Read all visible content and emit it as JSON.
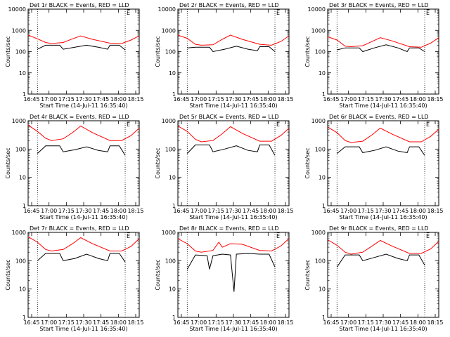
{
  "figure": {
    "xlabel": "Start Time (14-Jul-11 16:35:40)",
    "ylabel": "Counts/sec",
    "x_ticks": [
      "16:45",
      "17:00",
      "17:15",
      "17:30",
      "17:45",
      "18:00",
      "18:15"
    ],
    "y_ticks": [
      "1",
      "10",
      "100",
      "1000",
      "10000"
    ],
    "legend_glyph": "E̅",
    "colors": {
      "events": "#000000",
      "lld": "#ff0000",
      "axes": "#000000",
      "background": "#ffffff"
    }
  },
  "chart_data": [
    {
      "type": "line",
      "title": "Det 1r BLACK = Events, RED = LLD",
      "y_scale": "log",
      "x_range_minutes": [
        0,
        95
      ],
      "ylim": [
        1,
        10000
      ],
      "y_top_tick": "10000",
      "vlines": [
        8,
        83
      ],
      "series": [
        {
          "name": "BLACK = Events",
          "x": [
            8,
            15,
            27,
            30,
            40,
            50,
            60,
            68,
            70,
            78,
            83
          ],
          "y": [
            130,
            200,
            200,
            130,
            160,
            200,
            160,
            130,
            200,
            200,
            120
          ]
        },
        {
          "name": "RED = LLD",
          "x": [
            0,
            8,
            15,
            20,
            30,
            38,
            45,
            55,
            70,
            80,
            88,
            95
          ],
          "y": [
            600,
            400,
            270,
            240,
            270,
            400,
            550,
            380,
            250,
            240,
            350,
            550
          ]
        }
      ]
    },
    {
      "type": "line",
      "title": "Det 2r BLACK = Events, RED = LLD",
      "y_scale": "log",
      "x_range_minutes": [
        0,
        95
      ],
      "ylim": [
        1,
        10000
      ],
      "y_top_tick": "10000",
      "vlines": [
        8,
        83
      ],
      "series": [
        {
          "name": "BLACK = Events",
          "x": [
            8,
            15,
            27,
            30,
            40,
            50,
            60,
            68,
            70,
            78,
            83
          ],
          "y": [
            150,
            160,
            160,
            100,
            130,
            180,
            130,
            110,
            170,
            170,
            100
          ]
        },
        {
          "name": "RED = LLD",
          "x": [
            0,
            8,
            15,
            20,
            30,
            38,
            45,
            55,
            70,
            80,
            88,
            95
          ],
          "y": [
            600,
            420,
            220,
            200,
            210,
            380,
            600,
            380,
            220,
            200,
            300,
            550
          ]
        }
      ]
    },
    {
      "type": "line",
      "title": "Det 3r BLACK = Events, RED = LLD",
      "y_scale": "log",
      "x_range_minutes": [
        0,
        95
      ],
      "ylim": [
        1,
        10000
      ],
      "y_top_tick": "10000",
      "vlines": [
        8,
        83
      ],
      "series": [
        {
          "name": "BLACK = Events",
          "x": [
            8,
            15,
            27,
            30,
            40,
            50,
            60,
            68,
            70,
            78,
            83
          ],
          "y": [
            120,
            150,
            150,
            100,
            150,
            210,
            150,
            100,
            150,
            150,
            100
          ]
        },
        {
          "name": "RED = LLD",
          "x": [
            0,
            8,
            15,
            20,
            30,
            38,
            45,
            55,
            70,
            80,
            88,
            95
          ],
          "y": [
            500,
            350,
            180,
            170,
            190,
            300,
            450,
            320,
            170,
            160,
            250,
            450
          ]
        }
      ]
    },
    {
      "type": "line",
      "title": "Det 4r BLACK = Events, RED = LLD",
      "y_scale": "log",
      "x_range_minutes": [
        0,
        95
      ],
      "ylim": [
        1,
        1000
      ],
      "y_top_tick": "1000",
      "vlines": [
        8,
        83
      ],
      "series": [
        {
          "name": "BLACK = Events",
          "x": [
            8,
            15,
            27,
            30,
            40,
            50,
            60,
            68,
            70,
            78,
            83
          ],
          "y": [
            70,
            130,
            130,
            80,
            95,
            120,
            90,
            80,
            130,
            130,
            60
          ]
        },
        {
          "name": "RED = LLD",
          "x": [
            0,
            8,
            15,
            20,
            30,
            38,
            45,
            55,
            70,
            80,
            88,
            95
          ],
          "y": [
            700,
            420,
            240,
            200,
            230,
            380,
            650,
            380,
            200,
            200,
            300,
            550
          ]
        }
      ]
    },
    {
      "type": "line",
      "title": "Det 5r BLACK = Events, RED = LLD",
      "y_scale": "log",
      "x_range_minutes": [
        0,
        95
      ],
      "ylim": [
        1,
        1000
      ],
      "y_top_tick": "1000",
      "vlines": [
        8,
        83
      ],
      "series": [
        {
          "name": "BLACK = Events",
          "x": [
            8,
            15,
            27,
            30,
            40,
            50,
            60,
            68,
            70,
            78,
            83
          ],
          "y": [
            70,
            140,
            140,
            80,
            100,
            130,
            90,
            80,
            140,
            140,
            60
          ]
        },
        {
          "name": "RED = LLD",
          "x": [
            0,
            8,
            15,
            20,
            30,
            38,
            45,
            55,
            70,
            80,
            88,
            95
          ],
          "y": [
            650,
            420,
            220,
            180,
            200,
            350,
            620,
            360,
            190,
            190,
            300,
            550
          ]
        }
      ]
    },
    {
      "type": "line",
      "title": "Det 6r BLACK = Events, RED = LLD",
      "y_scale": "log",
      "x_range_minutes": [
        0,
        95
      ],
      "ylim": [
        1,
        1000
      ],
      "y_top_tick": "1000",
      "vlines": [
        8,
        83
      ],
      "series": [
        {
          "name": "BLACK = Events",
          "x": [
            8,
            15,
            27,
            30,
            40,
            50,
            60,
            68,
            70,
            78,
            83
          ],
          "y": [
            70,
            120,
            120,
            75,
            90,
            120,
            85,
            75,
            120,
            120,
            60
          ]
        },
        {
          "name": "RED = LLD",
          "x": [
            0,
            8,
            15,
            20,
            30,
            38,
            45,
            55,
            70,
            80,
            88,
            95
          ],
          "y": [
            600,
            380,
            200,
            170,
            190,
            320,
            550,
            340,
            180,
            180,
            280,
            500
          ]
        }
      ]
    },
    {
      "type": "line",
      "title": "Det 7r BLACK = Events, RED = LLD",
      "y_scale": "log",
      "x_range_minutes": [
        0,
        95
      ],
      "ylim": [
        1,
        1000
      ],
      "y_top_tick": "1000",
      "vlines": [
        8,
        83
      ],
      "series": [
        {
          "name": "BLACK = Events",
          "x": [
            8,
            15,
            27,
            30,
            40,
            50,
            60,
            68,
            70,
            78,
            83
          ],
          "y": [
            100,
            180,
            180,
            100,
            120,
            170,
            120,
            100,
            180,
            180,
            90
          ]
        },
        {
          "name": "RED = LLD",
          "x": [
            0,
            8,
            15,
            20,
            30,
            38,
            45,
            55,
            70,
            80,
            88,
            95
          ],
          "y": [
            700,
            450,
            250,
            220,
            250,
            400,
            650,
            400,
            220,
            220,
            320,
            600
          ]
        }
      ]
    },
    {
      "type": "line",
      "title": "Det 8r BLACK = Events, RED = LLD",
      "y_scale": "log",
      "x_range_minutes": [
        0,
        95
      ],
      "ylim": [
        1,
        1000
      ],
      "y_top_tick": "1000",
      "vlines": [
        8,
        83
      ],
      "series": [
        {
          "name": "BLACK = Events",
          "x": [
            8,
            15,
            25,
            27,
            30,
            38,
            45,
            48,
            50,
            60,
            70,
            78,
            83
          ],
          "y": [
            50,
            160,
            150,
            50,
            150,
            170,
            160,
            8,
            170,
            180,
            170,
            170,
            60
          ]
        },
        {
          "name": "RED = LLD",
          "x": [
            0,
            8,
            15,
            20,
            30,
            35,
            38,
            45,
            55,
            70,
            80,
            88,
            95
          ],
          "y": [
            600,
            400,
            220,
            200,
            230,
            450,
            300,
            400,
            380,
            230,
            220,
            330,
            600
          ]
        }
      ]
    },
    {
      "type": "line",
      "title": "Det 9r BLACK = Events, RED = LLD",
      "y_scale": "log",
      "x_range_minutes": [
        0,
        95
      ],
      "ylim": [
        1,
        1000
      ],
      "y_top_tick": "1000",
      "vlines": [
        8,
        83
      ],
      "series": [
        {
          "name": "BLACK = Events",
          "x": [
            8,
            15,
            27,
            30,
            40,
            50,
            60,
            68,
            70,
            78,
            83
          ],
          "y": [
            60,
            160,
            160,
            100,
            130,
            170,
            120,
            100,
            160,
            160,
            70
          ]
        },
        {
          "name": "RED = LLD",
          "x": [
            0,
            8,
            15,
            20,
            30,
            38,
            45,
            55,
            70,
            80,
            88,
            95
          ],
          "y": [
            550,
            350,
            200,
            170,
            200,
            330,
            520,
            330,
            180,
            180,
            260,
            480
          ]
        }
      ]
    }
  ]
}
